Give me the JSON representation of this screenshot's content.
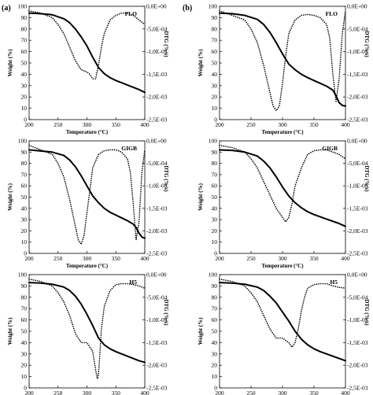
{
  "panel_labels": {
    "left": "(a)",
    "right": "(b)"
  },
  "x_axis_title": "Temperature (°C)",
  "y_axis_left_title": "Weight (%)",
  "y_axis_right_title": "DTG (%/s)",
  "x_tick_labels": [
    "200",
    "250",
    "300",
    "350",
    "400"
  ],
  "y_left_tick_labels": [
    "0",
    "10",
    "20",
    "30",
    "40",
    "50",
    "60",
    "70",
    "80",
    "90",
    "100"
  ],
  "y_right_tick_labels": [
    "0,0E+00",
    "-5,0E-04",
    "-1,0E-03",
    "-1,5E-03",
    "-2,0E-03",
    "-2,5E-03"
  ],
  "chart_data": [
    {
      "type": "line",
      "id": "a-FLO",
      "title": "FLO",
      "xlabel": "Temperature (°C)",
      "ylabel": "Weight (%)",
      "y2label": "DTG (%/s)",
      "xlim": [
        200,
        400
      ],
      "ylim": [
        0,
        100
      ],
      "y2lim": [
        -0.0025,
        0
      ],
      "series": [
        {
          "axis": "left",
          "style": "solid",
          "x": [
            200,
            220,
            240,
            260,
            270,
            280,
            290,
            300,
            310,
            320,
            330,
            340,
            350,
            360,
            370,
            380,
            390,
            400
          ],
          "y": [
            94,
            93.5,
            92.5,
            89,
            85.5,
            80,
            73,
            65,
            55,
            46,
            40.5,
            37,
            34.5,
            32.5,
            30.5,
            28.5,
            26.5,
            24
          ]
        },
        {
          "axis": "right",
          "style": "dotted",
          "x": [
            200,
            220,
            240,
            250,
            260,
            270,
            280,
            290,
            300,
            305,
            310,
            315,
            320,
            325,
            330,
            340,
            350,
            360,
            370,
            380,
            390,
            395,
            400
          ],
          "y": [
            -0.0001,
            -0.00015,
            -0.00025,
            -0.0004,
            -0.0006,
            -0.0009,
            -0.0012,
            -0.0014,
            -0.00145,
            -0.0015,
            -0.0016,
            -0.0016,
            -0.0013,
            -0.0009,
            -0.0006,
            -0.0003,
            -0.0002,
            -0.00015,
            -0.00015,
            -0.0002,
            -0.0003,
            -0.00035,
            -0.0004
          ]
        }
      ]
    },
    {
      "type": "line",
      "id": "b-FLO",
      "title": "FLO",
      "xlabel": "Temperature (°C)",
      "ylabel": "Weight (%)",
      "y2label": "DTG (%/s)",
      "xlim": [
        200,
        400
      ],
      "ylim": [
        0,
        100
      ],
      "y2lim": [
        -0.0025,
        0
      ],
      "series": [
        {
          "axis": "left",
          "style": "solid",
          "x": [
            200,
            220,
            240,
            260,
            270,
            280,
            290,
            300,
            310,
            320,
            330,
            340,
            350,
            360,
            370,
            380,
            385,
            390,
            395,
            400
          ],
          "y": [
            94,
            93.5,
            92,
            88.5,
            84,
            77,
            68,
            58,
            49,
            44,
            40,
            37,
            34.5,
            32,
            29.5,
            26,
            21,
            15,
            12.5,
            12
          ]
        },
        {
          "axis": "right",
          "style": "dotted",
          "x": [
            200,
            220,
            240,
            250,
            260,
            270,
            280,
            285,
            290,
            295,
            300,
            305,
            310,
            320,
            330,
            340,
            350,
            360,
            370,
            375,
            380,
            385,
            390,
            395,
            400
          ],
          "y": [
            -0.0001,
            -0.0002,
            -0.0003,
            -0.0005,
            -0.0008,
            -0.0013,
            -0.0019,
            -0.0022,
            -0.0023,
            -0.0022,
            -0.0017,
            -0.0011,
            -0.0006,
            -0.0003,
            -0.0002,
            -0.00018,
            -0.0002,
            -0.00025,
            -0.0004,
            -0.0007,
            -0.0015,
            -0.0021,
            -0.0016,
            -0.0006,
            -0.0001
          ]
        }
      ]
    },
    {
      "type": "line",
      "id": "a-GIGB",
      "title": "GIGB",
      "xlabel": "Temperature (°C)",
      "ylabel": "Weight (%)",
      "y2label": "DTG (%/s)",
      "xlim": [
        200,
        400
      ],
      "ylim": [
        0,
        100
      ],
      "y2lim": [
        -0.0025,
        0
      ],
      "series": [
        {
          "axis": "left",
          "style": "solid",
          "x": [
            200,
            220,
            240,
            260,
            270,
            280,
            290,
            300,
            310,
            320,
            330,
            340,
            350,
            360,
            370,
            380,
            385,
            390,
            395,
            400
          ],
          "y": [
            92,
            91,
            90,
            87,
            83,
            77,
            69,
            60,
            51,
            45,
            40,
            36.5,
            34,
            31.5,
            29,
            26,
            23,
            18,
            14.5,
            13.5
          ]
        },
        {
          "axis": "right",
          "style": "dotted",
          "x": [
            200,
            220,
            240,
            250,
            260,
            270,
            280,
            285,
            290,
            295,
            300,
            305,
            310,
            320,
            330,
            340,
            350,
            360,
            370,
            375,
            380,
            385,
            390,
            395,
            400
          ],
          "y": [
            -0.0001,
            -0.0002,
            -0.0003,
            -0.0005,
            -0.0008,
            -0.0013,
            -0.0019,
            -0.0022,
            -0.0023,
            -0.0021,
            -0.0016,
            -0.0011,
            -0.0006,
            -0.0003,
            -0.00022,
            -0.0002,
            -0.0002,
            -0.00025,
            -0.0004,
            -0.0007,
            -0.0014,
            -0.0022,
            -0.0018,
            -0.0007,
            -0.0002
          ]
        }
      ]
    },
    {
      "type": "line",
      "id": "b-GIGB",
      "title": "GIGB",
      "xlabel": "Temperature (°C)",
      "ylabel": "Weight (%)",
      "y2label": "DTG (%/s)",
      "xlim": [
        200,
        400
      ],
      "ylim": [
        0,
        100
      ],
      "y2lim": [
        -0.0025,
        0
      ],
      "series": [
        {
          "axis": "left",
          "style": "solid",
          "x": [
            200,
            220,
            240,
            260,
            270,
            280,
            290,
            300,
            310,
            320,
            330,
            340,
            350,
            360,
            370,
            380,
            390,
            400
          ],
          "y": [
            92,
            91.5,
            90,
            86.5,
            82,
            76,
            68,
            59,
            51,
            45,
            40.5,
            37,
            34.5,
            32.5,
            30.5,
            28.5,
            26.5,
            24
          ]
        },
        {
          "axis": "right",
          "style": "dotted",
          "x": [
            200,
            220,
            240,
            250,
            260,
            270,
            280,
            290,
            300,
            305,
            310,
            315,
            320,
            330,
            340,
            350,
            360,
            370,
            380,
            390,
            400
          ],
          "y": [
            -0.0001,
            -0.00015,
            -0.00025,
            -0.0004,
            -0.0006,
            -0.0009,
            -0.0012,
            -0.0015,
            -0.0017,
            -0.0018,
            -0.0017,
            -0.0014,
            -0.001,
            -0.0006,
            -0.0003,
            -0.00022,
            -0.0002,
            -0.0002,
            -0.00025,
            -0.0003,
            -0.0004
          ]
        }
      ]
    },
    {
      "type": "line",
      "id": "a-H5",
      "title": "H5",
      "xlabel": "Temperature (°C)",
      "ylabel": "Weight (%)",
      "y2label": "DTG (%/s)",
      "xlim": [
        200,
        400
      ],
      "ylim": [
        0,
        100
      ],
      "y2lim": [
        -0.0025,
        0
      ],
      "series": [
        {
          "axis": "left",
          "style": "solid",
          "x": [
            200,
            220,
            240,
            260,
            270,
            280,
            290,
            300,
            310,
            320,
            330,
            340,
            350,
            360,
            370,
            380,
            390,
            400
          ],
          "y": [
            93,
            92.5,
            91.5,
            89,
            86,
            81,
            74,
            65,
            55,
            44,
            38,
            34.5,
            32,
            30,
            28,
            26,
            24,
            22.5
          ]
        },
        {
          "axis": "right",
          "style": "dotted",
          "x": [
            200,
            220,
            240,
            250,
            260,
            270,
            280,
            285,
            290,
            300,
            305,
            310,
            315,
            318,
            320,
            325,
            330,
            340,
            350,
            360,
            370,
            380,
            390,
            400
          ],
          "y": [
            -0.0001,
            -0.00015,
            -0.00025,
            -0.0004,
            -0.0006,
            -0.0009,
            -0.0013,
            -0.0014,
            -0.0015,
            -0.0015,
            -0.0016,
            -0.0017,
            -0.0021,
            -0.0023,
            -0.0022,
            -0.0012,
            -0.0007,
            -0.00035,
            -0.00022,
            -0.0002,
            -0.0002,
            -0.00022,
            -0.00025,
            -0.0003
          ]
        }
      ]
    },
    {
      "type": "line",
      "id": "b-H5",
      "title": "H5",
      "xlabel": "Temperature (°C)",
      "ylabel": "Weight (%)",
      "y2label": "DTG (%/s)",
      "xlim": [
        200,
        400
      ],
      "ylim": [
        0,
        100
      ],
      "y2lim": [
        -0.0025,
        0
      ],
      "series": [
        {
          "axis": "left",
          "style": "solid",
          "x": [
            200,
            220,
            240,
            260,
            270,
            280,
            290,
            300,
            310,
            320,
            330,
            340,
            350,
            360,
            370,
            380,
            390,
            400
          ],
          "y": [
            93,
            92.5,
            91.5,
            89,
            86,
            81,
            75,
            67,
            59,
            50,
            43,
            38,
            34.5,
            32,
            30,
            28,
            26,
            24
          ]
        },
        {
          "axis": "right",
          "style": "dotted",
          "x": [
            200,
            220,
            240,
            250,
            260,
            270,
            280,
            285,
            290,
            300,
            310,
            315,
            320,
            325,
            330,
            335,
            340,
            350,
            360,
            370,
            380,
            390,
            400
          ],
          "y": [
            -0.0001,
            -0.00015,
            -0.00025,
            -0.0004,
            -0.0006,
            -0.0009,
            -0.0012,
            -0.0013,
            -0.0014,
            -0.0014,
            -0.0015,
            -0.0016,
            -0.0015,
            -0.0012,
            -0.0008,
            -0.0005,
            -0.0003,
            -0.00022,
            -0.0002,
            -0.0002,
            -0.00025,
            -0.00028,
            -0.0003
          ]
        }
      ]
    }
  ]
}
